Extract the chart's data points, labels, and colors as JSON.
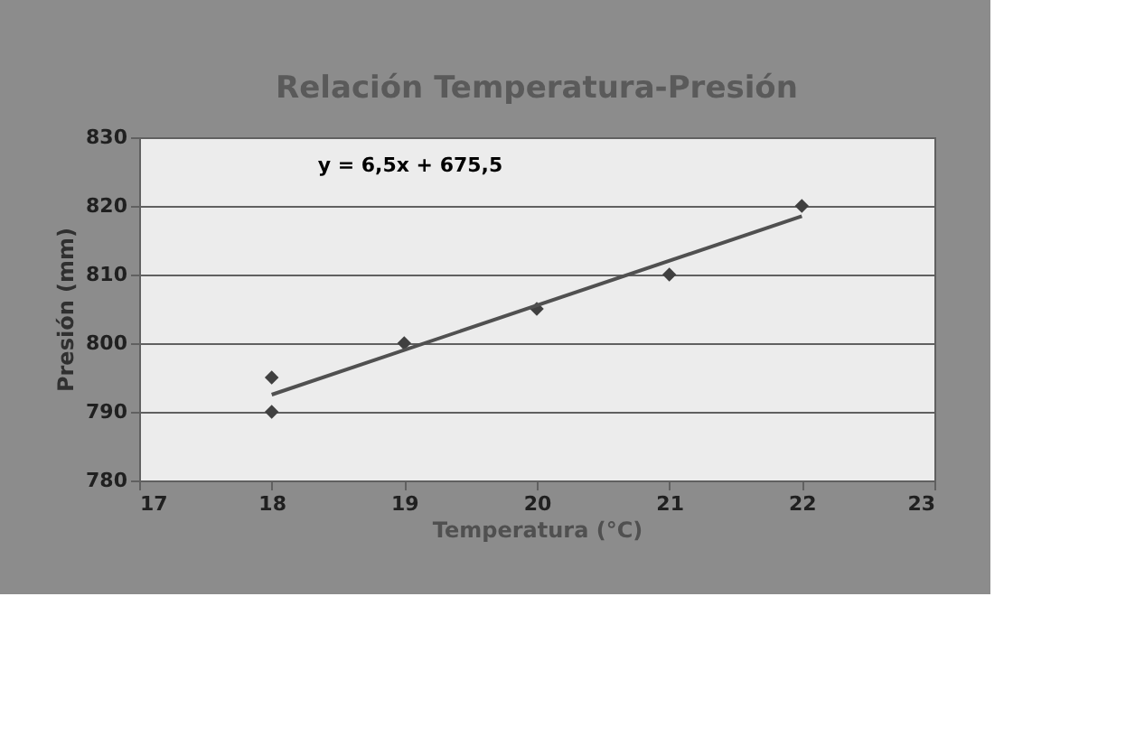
{
  "chart_data": {
    "type": "scatter",
    "title": "Relación Temperatura-Presión",
    "xlabel": "Temperatura (°C)",
    "ylabel": "Presión (mm)",
    "annotations": [
      "y = 6,5x + 675,5"
    ],
    "series": [
      {
        "type": "scatter",
        "color": "#404040",
        "marker": "diamond",
        "x": [
          18,
          18,
          19,
          20,
          21,
          22
        ],
        "values": [
          790,
          795,
          800,
          805,
          810,
          820
        ]
      },
      {
        "type": "line",
        "color": "#505050",
        "marker": "none",
        "x": [
          18,
          22
        ],
        "values": [
          792.5,
          818.5
        ]
      }
    ],
    "xlim": [
      17,
      23
    ],
    "xticks": [
      17,
      18,
      19,
      20,
      21,
      22,
      23
    ],
    "ylim": [
      780,
      830
    ],
    "yticks": [
      780,
      790,
      800,
      810,
      820,
      830
    ],
    "grid": "y",
    "legend": false
  }
}
